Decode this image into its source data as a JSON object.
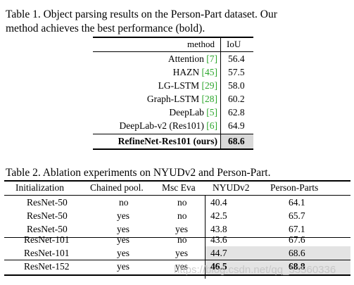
{
  "table1": {
    "caption_line1": "Table 1. Object parsing results on the Person-Part dataset.  Our",
    "caption_line2": "method achieves the best performance (bold).",
    "headers": {
      "method": "method",
      "iou": "IoU"
    },
    "rows": [
      {
        "method": "Attention",
        "ref": "[7]",
        "iou": "56.4"
      },
      {
        "method": "HAZN",
        "ref": "[45]",
        "iou": "57.5"
      },
      {
        "method": "LG-LSTM",
        "ref": "[29]",
        "iou": "58.0"
      },
      {
        "method": "Graph-LSTM",
        "ref": "[28]",
        "iou": "60.2"
      },
      {
        "method": "DeepLab",
        "ref": "[5]",
        "iou": "62.8"
      },
      {
        "method": "DeepLab-v2 (Res101)",
        "ref": "[6]",
        "iou": "64.9"
      }
    ],
    "best_row": {
      "method": "RefineNet-Res101 (ours)",
      "iou": "68.6"
    }
  },
  "table2": {
    "caption": "Table 2. Ablation experiments on NYUDv2 and Person-Part.",
    "headers": {
      "init": "Initialization",
      "chained": "Chained pool.",
      "msc": "Msc Eva",
      "nyud": "NYUDv2",
      "person": "Person-Parts"
    },
    "rows": [
      {
        "init": "ResNet-50",
        "chained": "no",
        "msc": "no",
        "nyud": "40.4",
        "person": "64.1"
      },
      {
        "init": "ResNet-50",
        "chained": "yes",
        "msc": "no",
        "nyud": "42.5",
        "person": "65.7"
      },
      {
        "init": "ResNet-50",
        "chained": "yes",
        "msc": "yes",
        "nyud": "43.8",
        "person": "67.1"
      },
      {
        "init": "ResNet-101",
        "chained": "yes",
        "msc": "no",
        "nyud": "43.6",
        "person": "67.6"
      },
      {
        "init": "ResNet-101",
        "chained": "yes",
        "msc": "yes",
        "nyud": "44.7",
        "person": "68.6"
      },
      {
        "init": "ResNet-152",
        "chained": "yes",
        "msc": "yes",
        "nyud": "46.5",
        "person": "68.8"
      }
    ]
  },
  "watermark": "https://blog.csdn.net/qq_33560336"
}
